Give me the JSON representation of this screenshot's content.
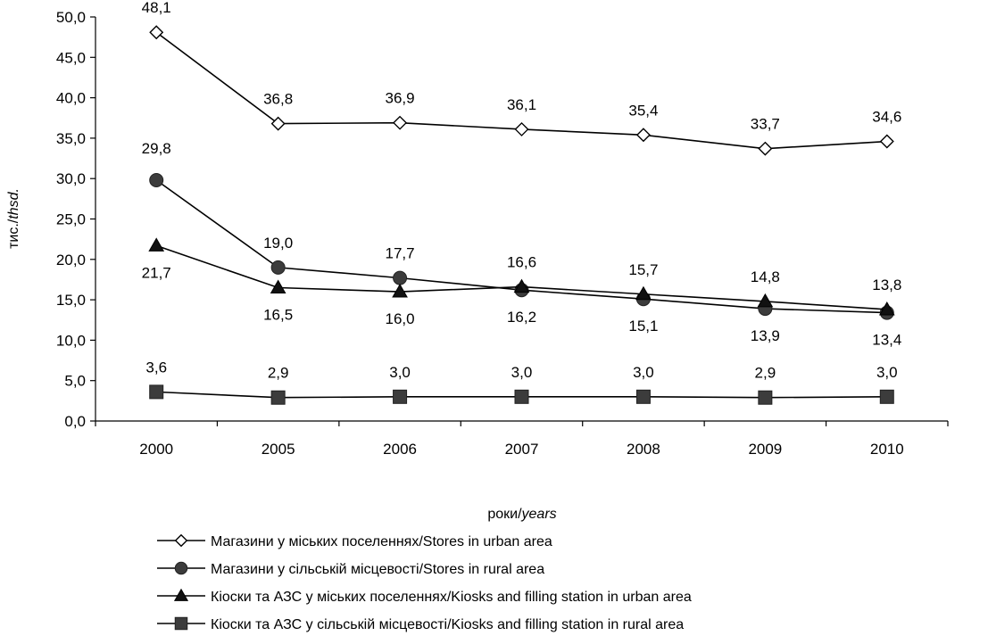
{
  "chart_data": {
    "type": "line",
    "title": "",
    "xlabel": {
      "prefix": "роки/",
      "italic": "years"
    },
    "ylabel": {
      "prefix": "тис./",
      "italic": "thsd."
    },
    "ylim": [
      0,
      50
    ],
    "yticks": [
      "0,0",
      "5,0",
      "10,0",
      "15,0",
      "20,0",
      "25,0",
      "30,0",
      "35,0",
      "40,0",
      "45,0",
      "50,0"
    ],
    "ytick_values": [
      0,
      5,
      10,
      15,
      20,
      25,
      30,
      35,
      40,
      45,
      50
    ],
    "categories": [
      "2000",
      "2005",
      "2006",
      "2007",
      "2008",
      "2009",
      "2010"
    ],
    "grid": false,
    "legend_position": "bottom",
    "series": [
      {
        "name": "Магазини у міських поселеннях/Stores in urban area",
        "marker": "diamond-open",
        "values": [
          48.1,
          36.8,
          36.9,
          36.1,
          35.4,
          33.7,
          34.6
        ],
        "labels": [
          "48,1",
          "36,8",
          "36,9",
          "36,1",
          "35,4",
          "33,7",
          "34,6"
        ],
        "label_pos": [
          "above",
          "above",
          "above",
          "above",
          "above",
          "above",
          "above"
        ]
      },
      {
        "name": "Магазини у сільській місцевості/Stores in rural area",
        "marker": "circle",
        "values": [
          29.8,
          19.0,
          17.7,
          16.2,
          15.1,
          13.9,
          13.4
        ],
        "labels": [
          "29,8",
          "19,0",
          "17,7",
          "16,2",
          "15,1",
          "13,9",
          "13,4"
        ],
        "label_pos": [
          "above-far",
          "above",
          "above",
          "below",
          "below",
          "below",
          "below"
        ]
      },
      {
        "name": "Кіоски та АЗС у міських поселеннях/Kiosks and filling station in urban area",
        "marker": "triangle",
        "values": [
          21.7,
          16.5,
          16.0,
          16.6,
          15.7,
          14.8,
          13.8
        ],
        "labels": [
          "21,7",
          "16,5",
          "16,0",
          "16,6",
          "15,7",
          "14,8",
          "13,8"
        ],
        "label_pos": [
          "below",
          "below",
          "below",
          "above",
          "above",
          "above",
          "above"
        ]
      },
      {
        "name": "Кіоски та АЗС у сільській місцевості/Kiosks and filling station in rural area",
        "marker": "square",
        "values": [
          3.6,
          2.9,
          3.0,
          3.0,
          3.0,
          2.9,
          3.0
        ],
        "labels": [
          "3,6",
          "2,9",
          "3,0",
          "3,0",
          "3,0",
          "2,9",
          "3,0"
        ],
        "label_pos": [
          "above",
          "above",
          "above",
          "above",
          "above",
          "above",
          "above"
        ]
      }
    ],
    "colors": {
      "line": "#000000",
      "marker_fill": "#3c3c3c",
      "open_fill": "#ffffff"
    }
  }
}
